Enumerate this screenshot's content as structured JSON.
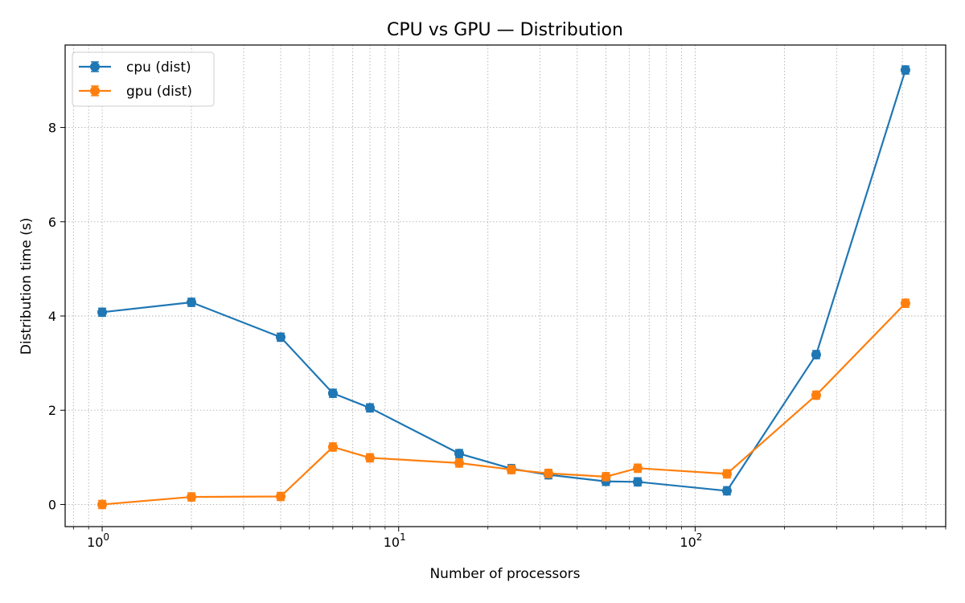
{
  "chart_data": {
    "type": "line",
    "title": "CPU vs GPU — Distribution",
    "xlabel": "Number of processors",
    "ylabel": "Distribution time (s)",
    "xscale": "log",
    "xlim": [
      0.75,
      700
    ],
    "ylim": [
      -0.47,
      9.75
    ],
    "x_ticks": [
      {
        "value": 1,
        "base": "10",
        "exp": "0"
      },
      {
        "value": 10,
        "base": "10",
        "exp": "1"
      },
      {
        "value": 100,
        "base": "10",
        "exp": "2"
      }
    ],
    "y_ticks": [
      0,
      2,
      4,
      6,
      8
    ],
    "grid": true,
    "grid_style": "dotted",
    "legend_position": "top-left",
    "x": [
      1,
      2,
      4,
      6,
      8,
      16,
      24,
      32,
      50,
      64,
      128,
      256,
      512
    ],
    "series": [
      {
        "name": "cpu (dist)",
        "color": "#1f77b4",
        "values": [
          4.08,
          4.29,
          3.55,
          2.36,
          2.05,
          1.08,
          0.76,
          0.63,
          0.49,
          0.48,
          0.29,
          3.18,
          9.22
        ]
      },
      {
        "name": "gpu (dist)",
        "color": "#ff7f0e",
        "values": [
          0.0,
          0.16,
          0.17,
          1.22,
          0.99,
          0.88,
          0.74,
          0.66,
          0.59,
          0.77,
          0.65,
          2.32,
          4.27
        ]
      }
    ]
  }
}
